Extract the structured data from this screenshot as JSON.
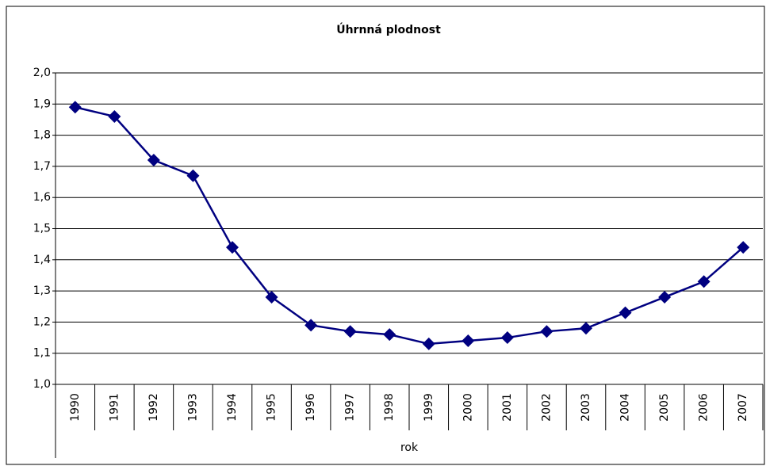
{
  "chart_data": {
    "type": "line",
    "title": "Úhrnná plodnost",
    "x_label": "rok",
    "categories": [
      "1990",
      "1991",
      "1992",
      "1993",
      "1994",
      "1995",
      "1996",
      "1997",
      "1998",
      "1999",
      "2000",
      "2001",
      "2002",
      "2003",
      "2004",
      "2005",
      "2006",
      "2007"
    ],
    "series": [
      {
        "name": "Úhrnná plodnost",
        "color": "#000080",
        "values": [
          1.89,
          1.86,
          1.72,
          1.67,
          1.44,
          1.28,
          1.19,
          1.17,
          1.16,
          1.13,
          1.14,
          1.15,
          1.17,
          1.18,
          1.23,
          1.28,
          1.33,
          1.44
        ]
      }
    ],
    "ylim": [
      1.0,
      2.0
    ],
    "yticks": [
      {
        "value": 1.0,
        "label": "1,0"
      },
      {
        "value": 1.1,
        "label": "1,1"
      },
      {
        "value": 1.2,
        "label": "1,2"
      },
      {
        "value": 1.3,
        "label": "1,3"
      },
      {
        "value": 1.4,
        "label": "1,4"
      },
      {
        "value": 1.5,
        "label": "1,5"
      },
      {
        "value": 1.6,
        "label": "1,6"
      },
      {
        "value": 1.7,
        "label": "1,7"
      },
      {
        "value": 1.8,
        "label": "1,8"
      },
      {
        "value": 1.9,
        "label": "1,9"
      },
      {
        "value": 2.0,
        "label": "2,0"
      }
    ],
    "grid": true,
    "legend": false
  }
}
